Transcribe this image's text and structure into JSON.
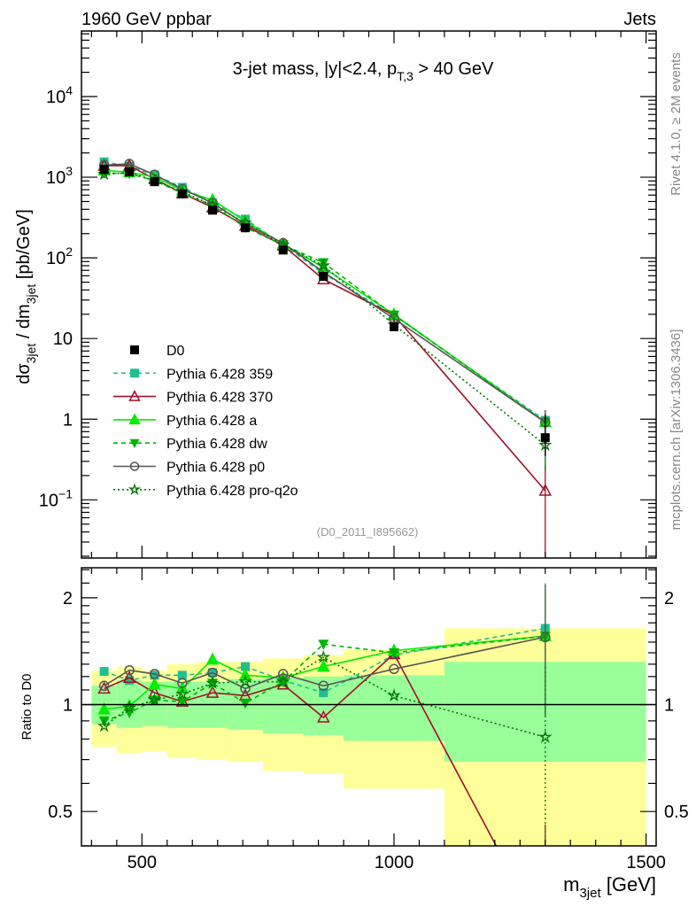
{
  "header": {
    "left": "1960 GeV ppbar",
    "right": "Jets"
  },
  "side_text": {
    "top": "Rivet 4.1.0, ≥ 2M events",
    "bottom": "mcplots.cern.ch [arXiv:1306.3436]"
  },
  "chart_data": {
    "type": "line",
    "title": {
      "pre": "3-jet mass, |y|<2.4, p",
      "sub": "T,3",
      "post": " > 40 GeV"
    },
    "watermark": "(D0_2011_I895662)",
    "xlabel": {
      "pre": "m",
      "sub": "3jet",
      "post": " [GeV]"
    },
    "ylabel": {
      "a": "dσ",
      "a_sub": "3jet",
      "b": " / dm",
      "b_sub": "3jet",
      "c": " [pb/GeV]"
    },
    "ratio_ylabel": "Ratio to D0",
    "xlim": [
      380,
      1520
    ],
    "ylim": [
      0.019,
      65000
    ],
    "yscale": "log",
    "ratio_ylim": [
      0.4,
      2.43
    ],
    "x_ticks": [
      {
        "v": 500,
        "label": "500"
      },
      {
        "v": 1000,
        "label": "1000"
      },
      {
        "v": 1500,
        "label": "1500"
      }
    ],
    "y_ticks": [
      {
        "v": 10000,
        "base": "10",
        "exp": "4"
      },
      {
        "v": 1000,
        "base": "10",
        "exp": "3"
      },
      {
        "v": 100,
        "base": "10",
        "exp": "2"
      },
      {
        "v": 10,
        "base": "10",
        "exp": ""
      },
      {
        "v": 1,
        "base": "1",
        "exp": ""
      },
      {
        "v": 0.1,
        "base": "10",
        "exp": "−1"
      }
    ],
    "ratio_ticks": [
      {
        "v": 2,
        "label": "2"
      },
      {
        "v": 1,
        "label": "1"
      },
      {
        "v": 0.5,
        "label": "0.5"
      }
    ],
    "bin_edges": [
      400,
      450,
      500,
      550,
      610,
      670,
      740,
      820,
      900,
      1100,
      1500
    ],
    "x": [
      425,
      475,
      525,
      580,
      640,
      705,
      780,
      860,
      1000,
      1300
    ],
    "data": {
      "name": "D0",
      "color": "#000000",
      "values": [
        1250,
        1170,
        880,
        620,
        390,
        236,
        125,
        59,
        14,
        0.59
      ],
      "err_last": [
        0.35,
        1.15
      ]
    },
    "band_total": {
      "lo": [
        0.76,
        0.73,
        0.74,
        0.71,
        0.7,
        0.69,
        0.65,
        0.64,
        0.58,
        0.3
      ],
      "hi": [
        1.25,
        1.28,
        1.25,
        1.3,
        1.32,
        1.32,
        1.35,
        1.38,
        1.43,
        1.64
      ],
      "color": "#ffff99"
    },
    "band_stat": {
      "lo": [
        0.88,
        0.86,
        0.87,
        0.86,
        0.86,
        0.85,
        0.83,
        0.82,
        0.79,
        0.69
      ],
      "hi": [
        1.13,
        1.17,
        1.16,
        1.16,
        1.16,
        1.18,
        1.19,
        1.2,
        1.21,
        1.32
      ],
      "color": "#99ff99"
    },
    "series": [
      {
        "name": "Pythia 6.428 359",
        "color": "#1fbf8f",
        "dash": "5,4",
        "marker": "square",
        "ratio": [
          1.24,
          1.17,
          1.21,
          1.21,
          1.23,
          1.28,
          1.17,
          1.08,
          1.38,
          1.64
        ],
        "ratio_err_last": [
          0.95,
          2.2
        ]
      },
      {
        "name": "Pythia 6.428 370",
        "color": "#a0102a",
        "dash": "",
        "marker": "open-triangle",
        "ratio": [
          1.11,
          1.19,
          1.08,
          1.02,
          1.08,
          1.06,
          1.14,
          0.92,
          1.39,
          0.22
        ],
        "ratio_err_last": [
          0.0,
          0.46
        ]
      },
      {
        "name": "Pythia 6.428 a",
        "color": "#00ee00",
        "dash": "",
        "marker": "triangle",
        "ratio": [
          0.97,
          0.99,
          1.14,
          1.11,
          1.34,
          1.21,
          1.19,
          1.28,
          1.42,
          1.56
        ],
        "ratio_err_last": [
          0.93,
          2.18
        ]
      },
      {
        "name": "Pythia 6.428 dw",
        "color": "#00b400",
        "dash": "5,4",
        "marker": "down-triangle",
        "ratio": [
          0.9,
          0.95,
          1.03,
          1.02,
          1.15,
          1.01,
          1.16,
          1.48,
          1.4,
          1.56
        ],
        "ratio_err_last": [
          0.93,
          2.18
        ]
      },
      {
        "name": "Pythia 6.428 p0",
        "color": "#555555",
        "dash": "",
        "marker": "open-circle",
        "ratio": [
          1.13,
          1.25,
          1.22,
          1.15,
          1.23,
          1.11,
          1.22,
          1.13,
          1.26,
          1.55
        ],
        "ratio_err_last": [
          0.93,
          2.18
        ]
      },
      {
        "name": "Pythia 6.428 pro-q2o",
        "color": "#007700",
        "dash": "2,3",
        "marker": "open-star",
        "ratio": [
          0.87,
          0.98,
          1.03,
          1.07,
          1.15,
          1.16,
          1.16,
          1.36,
          1.06,
          0.81
        ],
        "ratio_err_last": [
          0.4,
          1.3
        ]
      }
    ]
  }
}
